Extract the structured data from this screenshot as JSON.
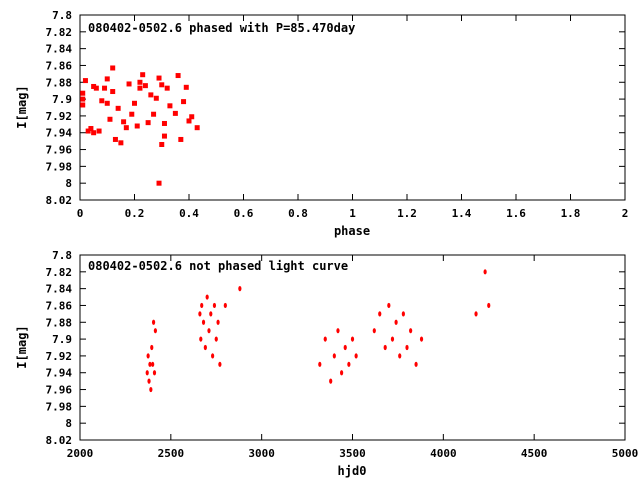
{
  "colors": {
    "point": "#ff0000",
    "axis": "#000000",
    "background": "#ffffff"
  },
  "chart_data": [
    {
      "type": "scatter",
      "title": "080402-0502.6 phased with P=85.470day",
      "xlabel": "phase",
      "ylabel": "I[mag]",
      "xlim": [
        0,
        2
      ],
      "ylim": [
        8.02,
        7.8
      ],
      "y_inverted": true,
      "grid": false,
      "legend": "none",
      "x_ticks": [
        "0",
        "0.2",
        "0.4",
        "0.6",
        "0.8",
        "1",
        "1.2",
        "1.4",
        "1.6",
        "1.8",
        "2"
      ],
      "y_ticks": [
        "7.8",
        "7.82",
        "7.84",
        "7.86",
        "7.88",
        "7.9",
        "7.92",
        "7.94",
        "7.96",
        "7.98",
        "8",
        "8.02"
      ],
      "points": [
        [
          0.01,
          7.893
        ],
        [
          0.01,
          7.9
        ],
        [
          0.01,
          7.907
        ],
        [
          0.02,
          7.878
        ],
        [
          0.03,
          7.938
        ],
        [
          0.04,
          7.935
        ],
        [
          0.05,
          7.885
        ],
        [
          0.05,
          7.94
        ],
        [
          0.06,
          7.887
        ],
        [
          0.07,
          7.938
        ],
        [
          0.08,
          7.902
        ],
        [
          0.09,
          7.887
        ],
        [
          0.1,
          7.905
        ],
        [
          0.1,
          7.876
        ],
        [
          0.11,
          7.924
        ],
        [
          0.12,
          7.891
        ],
        [
          0.12,
          7.863
        ],
        [
          0.13,
          7.948
        ],
        [
          0.14,
          7.911
        ],
        [
          0.15,
          7.952
        ],
        [
          0.16,
          7.927
        ],
        [
          0.17,
          7.934
        ],
        [
          0.18,
          7.882
        ],
        [
          0.19,
          7.918
        ],
        [
          0.2,
          7.905
        ],
        [
          0.21,
          7.932
        ],
        [
          0.22,
          7.887
        ],
        [
          0.22,
          7.88
        ],
        [
          0.23,
          7.871
        ],
        [
          0.24,
          7.884
        ],
        [
          0.25,
          7.928
        ],
        [
          0.26,
          7.895
        ],
        [
          0.27,
          7.918
        ],
        [
          0.28,
          7.899
        ],
        [
          0.29,
          7.875
        ],
        [
          0.3,
          7.883
        ],
        [
          0.31,
          7.944
        ],
        [
          0.31,
          7.929
        ],
        [
          0.32,
          7.887
        ],
        [
          0.33,
          7.908
        ],
        [
          0.35,
          7.917
        ],
        [
          0.36,
          7.872
        ],
        [
          0.38,
          7.903
        ],
        [
          0.39,
          7.886
        ],
        [
          0.4,
          7.926
        ],
        [
          0.29,
          8
        ],
        [
          0.3,
          7.954
        ],
        [
          0.37,
          7.948
        ],
        [
          0.41,
          7.921
        ],
        [
          0.43,
          7.934
        ]
      ]
    },
    {
      "type": "scatter",
      "title": "080402-0502.6 not phased light curve",
      "xlabel": "hjd0",
      "ylabel": "I[mag]",
      "xlim": [
        2000,
        5000
      ],
      "ylim": [
        8.02,
        7.8
      ],
      "y_inverted": true,
      "grid": false,
      "legend": "none",
      "x_ticks": [
        "2000",
        "2500",
        "3000",
        "3500",
        "4000",
        "4500",
        "5000"
      ],
      "y_ticks": [
        "7.8",
        "7.82",
        "7.84",
        "7.86",
        "7.88",
        "7.9",
        "7.92",
        "7.94",
        "7.96",
        "7.98",
        "8",
        "8.02"
      ],
      "points": [
        [
          2370,
          7.94
        ],
        [
          2375,
          7.92
        ],
        [
          2380,
          7.95
        ],
        [
          2385,
          7.93
        ],
        [
          2390,
          7.96
        ],
        [
          2395,
          7.91
        ],
        [
          2400,
          7.93
        ],
        [
          2405,
          7.88
        ],
        [
          2410,
          7.94
        ],
        [
          2415,
          7.89
        ],
        [
          2660,
          7.87
        ],
        [
          2665,
          7.9
        ],
        [
          2670,
          7.86
        ],
        [
          2680,
          7.88
        ],
        [
          2690,
          7.91
        ],
        [
          2700,
          7.85
        ],
        [
          2710,
          7.89
        ],
        [
          2720,
          7.87
        ],
        [
          2730,
          7.92
        ],
        [
          2740,
          7.86
        ],
        [
          2750,
          7.9
        ],
        [
          2760,
          7.88
        ],
        [
          2770,
          7.93
        ],
        [
          2800,
          7.86
        ],
        [
          2880,
          7.84
        ],
        [
          3320,
          7.93
        ],
        [
          3350,
          7.9
        ],
        [
          3380,
          7.95
        ],
        [
          3400,
          7.92
        ],
        [
          3420,
          7.89
        ],
        [
          3440,
          7.94
        ],
        [
          3460,
          7.91
        ],
        [
          3480,
          7.93
        ],
        [
          3500,
          7.9
        ],
        [
          3520,
          7.92
        ],
        [
          3620,
          7.89
        ],
        [
          3650,
          7.87
        ],
        [
          3680,
          7.91
        ],
        [
          3700,
          7.86
        ],
        [
          3720,
          7.9
        ],
        [
          3740,
          7.88
        ],
        [
          3760,
          7.92
        ],
        [
          3780,
          7.87
        ],
        [
          3800,
          7.91
        ],
        [
          3820,
          7.89
        ],
        [
          3850,
          7.93
        ],
        [
          3880,
          7.9
        ],
        [
          4180,
          7.87
        ],
        [
          4230,
          7.82
        ],
        [
          4250,
          7.86
        ]
      ]
    }
  ]
}
